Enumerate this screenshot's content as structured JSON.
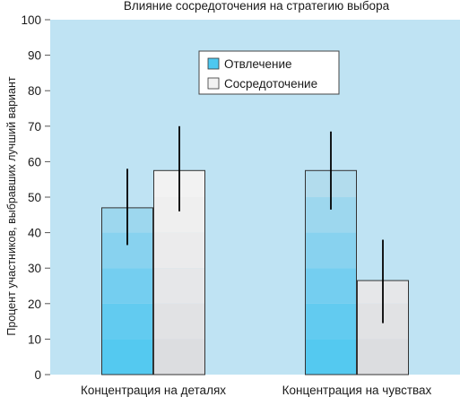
{
  "chart_data": {
    "type": "bar",
    "title": "Влияние сосредоточения на стратегию выбора",
    "xlabel": "",
    "ylabel": "Процент участников, выбравших лучший вариант",
    "categories": [
      "Концентрация на деталях",
      "Концентрация на чувствах"
    ],
    "ylim": [
      0,
      100
    ],
    "yticks": [
      0,
      10,
      20,
      30,
      40,
      50,
      60,
      70,
      80,
      90,
      100
    ],
    "grid": false,
    "legend_position": "top-center",
    "series": [
      {
        "name": "Отвлечение",
        "values": [
          47,
          57.5
        ],
        "error_low": [
          36.5,
          46.5
        ],
        "error_high": [
          58,
          68.5
        ],
        "color": "#4dc8f0"
      },
      {
        "name": "Сосредоточение",
        "values": [
          57.5,
          26.5
        ],
        "error_low": [
          46,
          14.5
        ],
        "error_high": [
          70,
          38
        ],
        "color": "#f2f2f2"
      }
    ],
    "colors": {
      "plot_background": "#bfe3f3",
      "bar_border": "#333333",
      "error_bar": "#000000"
    }
  }
}
